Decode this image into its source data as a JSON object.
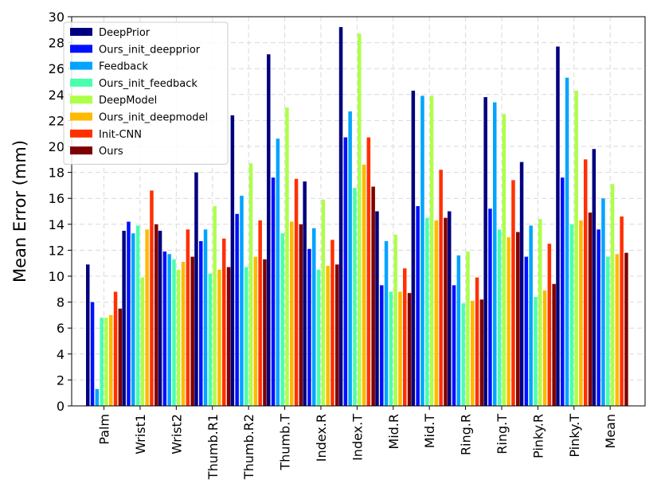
{
  "chart_data": {
    "type": "bar",
    "title": "",
    "xlabel": "",
    "ylabel": "Mean Error (mm)",
    "ylim": [
      0,
      30
    ],
    "yticks": [
      0,
      2,
      4,
      6,
      8,
      10,
      12,
      14,
      16,
      18,
      20,
      22,
      24,
      26,
      28,
      30
    ],
    "grid": true,
    "legend_position": "top-left",
    "categories": [
      "Palm",
      "Wrist1",
      "Wrist2",
      "Thumb.R1",
      "Thumb.R2",
      "Thumb.T",
      "Index.R",
      "Index.T",
      "Mid.R",
      "Mid.T",
      "Ring.R",
      "Ring.T",
      "Pinky.R",
      "Pinky.T",
      "Mean"
    ],
    "series": [
      {
        "name": "DeepPrior",
        "color": "#00007f",
        "values": [
          10.9,
          13.5,
          13.5,
          18.0,
          22.4,
          27.1,
          17.3,
          29.2,
          15.0,
          24.3,
          15.0,
          23.8,
          18.8,
          27.7,
          19.8
        ]
      },
      {
        "name": "Ours_init_deepprior",
        "color": "#0010ff",
        "values": [
          8.0,
          14.2,
          11.9,
          12.7,
          14.8,
          17.6,
          12.1,
          20.7,
          9.3,
          15.4,
          9.3,
          15.2,
          11.5,
          17.6,
          13.6
        ]
      },
      {
        "name": "Feedback",
        "color": "#00a4ff",
        "values": [
          1.3,
          13.3,
          11.7,
          13.6,
          16.2,
          20.6,
          13.7,
          22.7,
          12.7,
          23.9,
          11.6,
          23.4,
          13.9,
          25.3,
          16.0
        ]
      },
      {
        "name": "Ours_init_feedback",
        "color": "#49ffad",
        "values": [
          6.8,
          13.9,
          11.3,
          10.2,
          10.7,
          13.3,
          10.5,
          16.8,
          8.8,
          14.5,
          7.9,
          13.6,
          8.4,
          14.0,
          11.5
        ]
      },
      {
        "name": "DeepModel",
        "color": "#adff49",
        "values": [
          6.8,
          9.9,
          10.5,
          15.4,
          18.7,
          23.0,
          15.9,
          28.7,
          13.2,
          23.9,
          11.9,
          22.5,
          14.4,
          24.3,
          17.1
        ]
      },
      {
        "name": "Ours_init_deepmodel",
        "color": "#ffb900",
        "values": [
          7.0,
          13.6,
          11.1,
          10.5,
          11.5,
          14.2,
          10.8,
          18.6,
          8.8,
          14.3,
          8.1,
          13.0,
          8.9,
          14.3,
          11.7
        ]
      },
      {
        "name": "Init-CNN",
        "color": "#ff3000",
        "values": [
          8.8,
          16.6,
          13.6,
          12.9,
          14.3,
          17.5,
          12.8,
          20.7,
          10.6,
          18.2,
          9.9,
          17.4,
          12.5,
          19.0,
          14.6
        ]
      },
      {
        "name": "Ours",
        "color": "#7f0000",
        "values": [
          7.5,
          14.0,
          11.5,
          10.7,
          11.3,
          14.0,
          10.9,
          16.9,
          8.7,
          14.5,
          8.2,
          13.4,
          9.4,
          14.9,
          11.8
        ]
      }
    ]
  }
}
